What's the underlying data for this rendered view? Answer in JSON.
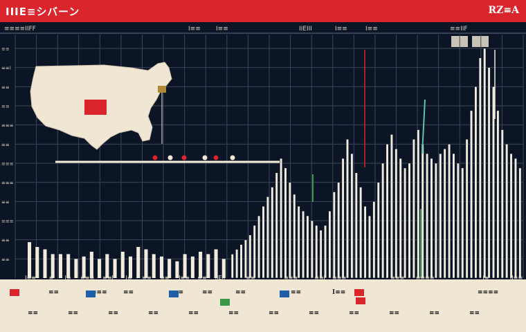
{
  "header": {
    "title": "IIIE≡シバーン",
    "badge": "RZ≡A"
  },
  "top_labels": [
    "≡≡≡≡IIFF",
    "I≡≡",
    "I≡≡",
    "IIEIII",
    "I≡≡",
    "I≡≡",
    "≡≡IIF"
  ],
  "y_ticks": [
    "≡≡",
    "≡≡I",
    "≡≡",
    "≡≡",
    "≡≡≡",
    "≡≡",
    "≡≡≡",
    "≡≡≡",
    "≡≡",
    "≡≡≡",
    "≡≡",
    "≡≡"
  ],
  "x_labels": [
    "I≡≡",
    "≡",
    "I≡",
    "≡≡≡",
    "≡≡I",
    "I≡",
    "≡≡",
    "≡≡",
    "I≡≡",
    "≡≡",
    "IIEII",
    "≡≡",
    "≡≡≡",
    "≡≡I",
    "≡≡≡",
    "≡≡≡",
    "≡≡≡≡",
    "I≡",
    "II≡≡"
  ],
  "footer": {
    "row1": [
      "≡≡",
      "≡≡≡",
      "≡≡",
      "≡≡",
      "≡≡",
      "≡≡",
      "≡≡",
      "I≡≡",
      "≡≡≡≡"
    ],
    "row2": [
      "≡≡",
      "≡≡",
      "≡≡",
      "≡≡",
      "≡≡",
      "≡≡",
      "≡≡",
      "≡≡",
      "≡≡",
      "≡≡",
      "≡≡",
      "≡≡"
    ],
    "chip_colors": [
      "#d9252b",
      "#1f5fa8",
      "#1f5fa8",
      "#1f5fa8",
      "#3a9a4a",
      "#d9252b",
      "#d9252b"
    ]
  },
  "colors": {
    "background": "#0b1526",
    "bars": "#f1ebdd",
    "accent_red": "#d9252b",
    "accent_teal": "#58c7b0",
    "map_fill": "#efe6d3",
    "map_highlight": "#d9252b"
  },
  "chart_data": {
    "type": "bar",
    "title": "IIIE≡シバーン",
    "xlabel": "",
    "ylabel": "",
    "ylim": [
      0,
      100
    ],
    "annotation": "US map inset with one highlighted state",
    "series": [
      {
        "name": "left-group",
        "values": [
          15,
          13,
          12,
          10,
          10,
          10,
          8,
          9,
          11,
          8,
          10,
          8,
          11,
          9,
          13,
          12,
          10,
          9,
          8,
          7,
          10,
          9,
          11,
          10,
          12,
          8
        ]
      },
      {
        "name": "right-group",
        "values": [
          10,
          12,
          14,
          16,
          18,
          22,
          26,
          30,
          34,
          38,
          44,
          50,
          46,
          40,
          35,
          30,
          28,
          26,
          24,
          22,
          20,
          22,
          28,
          36,
          40,
          50,
          58,
          52,
          44,
          38,
          30,
          26,
          32,
          40,
          48,
          56,
          60,
          54,
          50,
          46,
          48,
          58,
          62,
          56,
          52,
          50,
          48,
          52,
          54,
          56,
          52,
          48,
          46,
          58,
          70,
          80,
          92,
          96,
          88,
          80,
          70,
          62,
          56,
          52,
          50,
          46
        ]
      }
    ]
  }
}
